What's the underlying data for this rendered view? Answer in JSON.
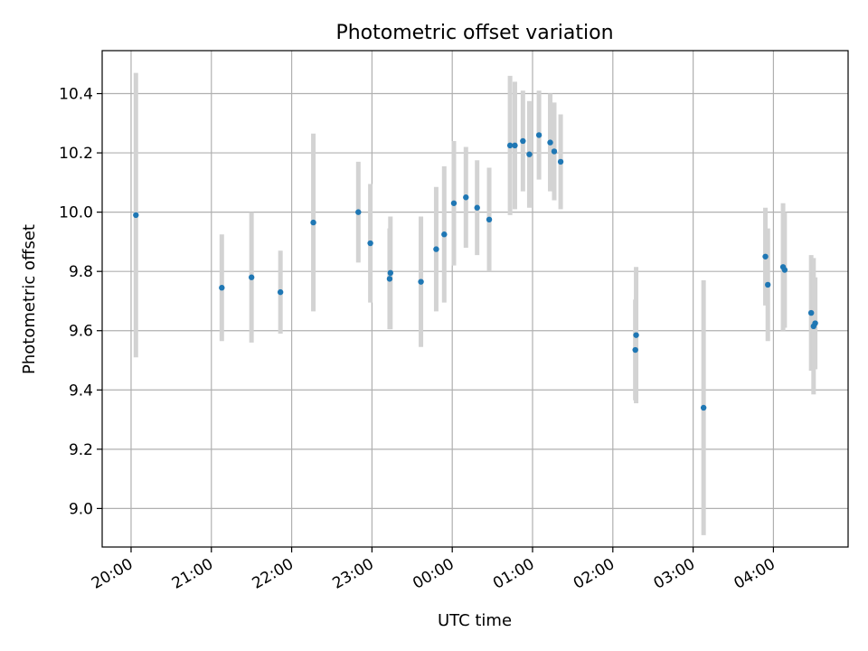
{
  "chart_data": {
    "type": "scatter",
    "title": "Photometric offset variation",
    "xlabel": "UTC time",
    "ylabel": "Photometric offset",
    "x_unit": "UTC time (hours after midnight; values above 24 wrap past midnight)",
    "xlim": [
      19.64,
      28.93
    ],
    "ylim": [
      8.87,
      10.545
    ],
    "x_ticks": [
      {
        "value": 20,
        "label": "20:00"
      },
      {
        "value": 21,
        "label": "21:00"
      },
      {
        "value": 22,
        "label": "22:00"
      },
      {
        "value": 23,
        "label": "23:00"
      },
      {
        "value": 24,
        "label": "00:00"
      },
      {
        "value": 25,
        "label": "01:00"
      },
      {
        "value": 26,
        "label": "02:00"
      },
      {
        "value": 27,
        "label": "03:00"
      },
      {
        "value": 28,
        "label": "04:00"
      }
    ],
    "y_ticks": [
      {
        "value": 9.0,
        "label": "9.0"
      },
      {
        "value": 9.2,
        "label": "9.2"
      },
      {
        "value": 9.4,
        "label": "9.4"
      },
      {
        "value": 9.6,
        "label": "9.6"
      },
      {
        "value": 9.8,
        "label": "9.8"
      },
      {
        "value": 10.0,
        "label": "10.0"
      },
      {
        "value": 10.2,
        "label": "10.2"
      },
      {
        "value": 10.4,
        "label": "10.4"
      }
    ],
    "grid": true,
    "colors": {
      "point": "#1f77b4",
      "errorbar": "#d3d3d3",
      "grid": "#b0b0b0"
    },
    "points": [
      {
        "x": 20.06,
        "y": 9.99,
        "err": 0.48
      },
      {
        "x": 21.13,
        "y": 9.745,
        "err": 0.18
      },
      {
        "x": 21.5,
        "y": 9.78,
        "err": 0.22
      },
      {
        "x": 21.86,
        "y": 9.73,
        "err": 0.14
      },
      {
        "x": 22.27,
        "y": 9.965,
        "err": 0.3
      },
      {
        "x": 22.83,
        "y": 10.0,
        "err": 0.17
      },
      {
        "x": 22.98,
        "y": 9.895,
        "err": 0.2
      },
      {
        "x": 23.22,
        "y": 9.775,
        "err": 0.17
      },
      {
        "x": 23.23,
        "y": 9.795,
        "err": 0.19
      },
      {
        "x": 23.61,
        "y": 9.765,
        "err": 0.22
      },
      {
        "x": 23.8,
        "y": 9.875,
        "err": 0.21
      },
      {
        "x": 23.9,
        "y": 9.925,
        "err": 0.23
      },
      {
        "x": 24.02,
        "y": 10.03,
        "err": 0.21
      },
      {
        "x": 24.17,
        "y": 10.05,
        "err": 0.17
      },
      {
        "x": 24.31,
        "y": 10.015,
        "err": 0.16
      },
      {
        "x": 24.46,
        "y": 9.975,
        "err": 0.175
      },
      {
        "x": 24.72,
        "y": 10.225,
        "err": 0.235
      },
      {
        "x": 24.78,
        "y": 10.225,
        "err": 0.215
      },
      {
        "x": 24.88,
        "y": 10.24,
        "err": 0.17
      },
      {
        "x": 24.96,
        "y": 10.195,
        "err": 0.18
      },
      {
        "x": 25.08,
        "y": 10.26,
        "err": 0.15
      },
      {
        "x": 25.22,
        "y": 10.235,
        "err": 0.165
      },
      {
        "x": 25.27,
        "y": 10.205,
        "err": 0.165
      },
      {
        "x": 25.35,
        "y": 10.17,
        "err": 0.16
      },
      {
        "x": 26.28,
        "y": 9.535,
        "err": 0.17
      },
      {
        "x": 26.29,
        "y": 9.585,
        "err": 0.23
      },
      {
        "x": 27.13,
        "y": 9.34,
        "err": 0.43
      },
      {
        "x": 27.9,
        "y": 9.85,
        "err": 0.165
      },
      {
        "x": 27.93,
        "y": 9.755,
        "err": 0.19
      },
      {
        "x": 28.12,
        "y": 9.815,
        "err": 0.215
      },
      {
        "x": 28.14,
        "y": 9.805,
        "err": 0.195
      },
      {
        "x": 28.47,
        "y": 9.66,
        "err": 0.195
      },
      {
        "x": 28.5,
        "y": 9.615,
        "err": 0.23
      },
      {
        "x": 28.52,
        "y": 9.625,
        "err": 0.155
      }
    ]
  }
}
